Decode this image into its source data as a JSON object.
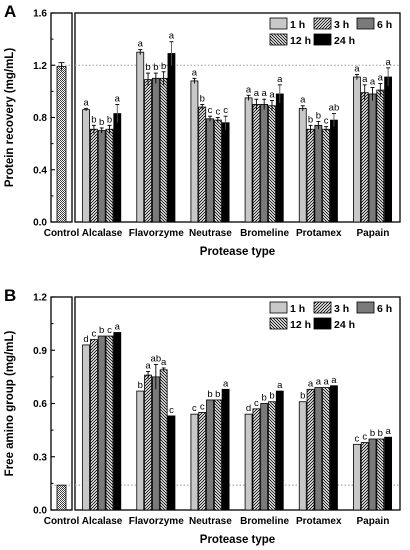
{
  "chart_data": [
    {
      "type": "bar",
      "panel": "A",
      "xlabel": "Protease type",
      "ylabel": "Protein recovery (mg/mL)",
      "ylim": [
        0,
        1.6
      ],
      "yticks": [
        "0.0",
        "0.4",
        "0.8",
        "1.2",
        "1.6"
      ],
      "reference_line": 1.2,
      "control": {
        "label": "Control",
        "value": 1.19,
        "error": 0.03
      },
      "categories": [
        "Alcalase",
        "Flavorzyme",
        "Neutrase",
        "Bromeline",
        "Protamex",
        "Papain"
      ],
      "series": [
        {
          "name": "1 h",
          "values": [
            0.86,
            1.3,
            1.08,
            0.95,
            0.87,
            1.11
          ],
          "errors": [
            0.01,
            0.02,
            0.02,
            0.02,
            0.02,
            0.02
          ],
          "letters": [
            "a",
            "a",
            "a",
            "a",
            "a",
            "a"
          ]
        },
        {
          "name": "3 h",
          "values": [
            0.71,
            1.09,
            0.88,
            0.9,
            0.71,
            0.99
          ],
          "errors": [
            0.03,
            0.05,
            0.02,
            0.04,
            0.03,
            0.06
          ],
          "letters": [
            "b",
            "b",
            "b",
            "a",
            "b",
            "a"
          ]
        },
        {
          "name": "6 h",
          "values": [
            0.7,
            1.1,
            0.79,
            0.9,
            0.74,
            0.98
          ],
          "errors": [
            0.02,
            0.04,
            0.02,
            0.04,
            0.03,
            0.05
          ],
          "letters": [
            "b",
            "b",
            "c",
            "a",
            "b",
            "a"
          ]
        },
        {
          "name": "12 h",
          "values": [
            0.71,
            1.1,
            0.78,
            0.89,
            0.71,
            1.01
          ],
          "errors": [
            0.03,
            0.05,
            0.02,
            0.04,
            0.02,
            0.05
          ],
          "letters": [
            "b",
            "b",
            "c",
            "a",
            "c",
            "a"
          ]
        },
        {
          "name": "24 h",
          "values": [
            0.83,
            1.29,
            0.76,
            0.98,
            0.78,
            1.11
          ],
          "errors": [
            0.07,
            0.09,
            0.05,
            0.07,
            0.05,
            0.07
          ],
          "letters": [
            "a",
            "a",
            "c",
            "a",
            "ab",
            "a"
          ]
        }
      ]
    },
    {
      "type": "bar",
      "panel": "B",
      "xlabel": "Protease type",
      "ylabel": "Free amino group (mg/mL)",
      "ylim": [
        0,
        1.2
      ],
      "yticks": [
        "0.0",
        "0.3",
        "0.6",
        "0.9",
        "1.2"
      ],
      "reference_line": 0.14,
      "control": {
        "label": "Control",
        "value": 0.14,
        "error": 0.0
      },
      "categories": [
        "Alcalase",
        "Flavorzyme",
        "Neutrase",
        "Bromeline",
        "Protamex",
        "Papain"
      ],
      "series": [
        {
          "name": "1 h",
          "values": [
            0.93,
            0.67,
            0.54,
            0.54,
            0.61,
            0.37
          ],
          "errors": [
            0.0,
            0.0,
            0.0,
            0.0,
            0.0,
            0.0
          ],
          "letters": [
            "d",
            "b",
            "c",
            "d",
            "b",
            "c"
          ]
        },
        {
          "name": "3 h",
          "values": [
            0.96,
            0.76,
            0.55,
            0.57,
            0.68,
            0.38
          ],
          "errors": [
            0.0,
            0.02,
            0.0,
            0.0,
            0.0,
            0.0
          ],
          "letters": [
            "c",
            "a",
            "c",
            "c",
            "a",
            "c"
          ]
        },
        {
          "name": "6 h",
          "values": [
            0.98,
            0.75,
            0.62,
            0.6,
            0.69,
            0.4
          ],
          "errors": [
            0.0,
            0.07,
            0.0,
            0.0,
            0.0,
            0.0
          ],
          "letters": [
            "b",
            "ab",
            "b",
            "b",
            "a",
            "b"
          ]
        },
        {
          "name": "12 h",
          "values": [
            0.98,
            0.79,
            0.62,
            0.61,
            0.69,
            0.4
          ],
          "errors": [
            0.0,
            0.01,
            0.0,
            0.0,
            0.0,
            0.0
          ],
          "letters": [
            "c",
            "a",
            "b",
            "b",
            "a",
            "b"
          ]
        },
        {
          "name": "24 h",
          "values": [
            1.0,
            0.53,
            0.68,
            0.67,
            0.7,
            0.41
          ],
          "errors": [
            0.0,
            0.0,
            0.0,
            0.0,
            0.0,
            0.0
          ],
          "letters": [
            "a",
            "c",
            "a",
            "a",
            "a",
            "a"
          ]
        }
      ]
    }
  ],
  "legend_colors": [
    "#c8c8c8",
    "#ffffff",
    "#7a7a7a",
    "#ffffff",
    "#000000"
  ],
  "legend_patterns": [
    "solid",
    "diagonal-hatch",
    "solid",
    "backslash-hatch",
    "solid"
  ]
}
